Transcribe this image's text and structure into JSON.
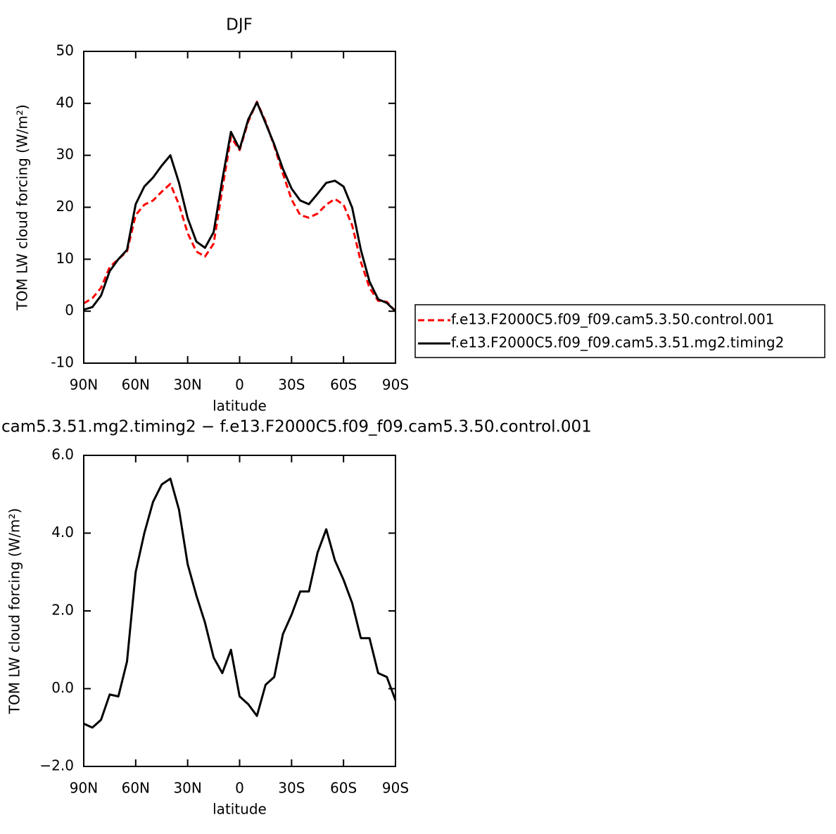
{
  "chart_data": [
    {
      "type": "line",
      "title": "DJF",
      "xlabel": "latitude",
      "ylabel": "TOM LW cloud forcing (W/m²)",
      "x": [
        90,
        85,
        80,
        75,
        70,
        65,
        60,
        55,
        50,
        45,
        40,
        35,
        30,
        25,
        20,
        15,
        10,
        5,
        0,
        -5,
        -10,
        -15,
        -20,
        -25,
        -30,
        -35,
        -40,
        -45,
        -50,
        -55,
        -60,
        -65,
        -70,
        -75,
        -80,
        -85,
        -90
      ],
      "xlim": [
        90,
        -90
      ],
      "xticks": [
        {
          "value": 90,
          "label": "90N"
        },
        {
          "value": 60,
          "label": "60N"
        },
        {
          "value": 30,
          "label": "30N"
        },
        0,
        {
          "value": -30,
          "label": "30S"
        },
        {
          "value": -60,
          "label": "60S"
        },
        {
          "value": -90,
          "label": "90S"
        }
      ],
      "ylim": [
        -10,
        50
      ],
      "yticks": [
        -10,
        0,
        10,
        20,
        30,
        40,
        50
      ],
      "legend": "right",
      "series": [
        {
          "name": "f.e13.F2000C5.f09_f09.cam5.3.50.control.001",
          "color": "#ff0000",
          "style": "dashed",
          "values": [
            1.5,
            2.5,
            4.5,
            8.5,
            10,
            11.5,
            18.5,
            20.5,
            21.3,
            23,
            24.5,
            20.5,
            15,
            11.5,
            10.5,
            13,
            23.5,
            33.5,
            31,
            36.5,
            40.3,
            36.5,
            31.8,
            26.5,
            21.5,
            18.5,
            18,
            18.8,
            20.5,
            21.6,
            20.5,
            16.5,
            9.5,
            4.5,
            2,
            1.8,
            0
          ]
        },
        {
          "name": "f.e13.F2000C5.f09_f09.cam5.3.51.mg2.timing2",
          "color": "#000000",
          "style": "solid",
          "values": [
            0.3,
            0.8,
            3,
            7.7,
            10,
            11.8,
            20.6,
            24,
            25.7,
            28,
            30,
            24.7,
            17.9,
            13.4,
            12.2,
            15.2,
            25.3,
            34.5,
            31.2,
            36.9,
            40.2,
            36.2,
            32.1,
            27.4,
            23.6,
            21.3,
            20.6,
            22.6,
            24.7,
            25.1,
            24,
            19.9,
            11.8,
            5.7,
            2.3,
            1.6,
            0
          ]
        }
      ]
    },
    {
      "type": "line",
      "title": "cam5.3.51.mg2.timing2 − f.e13.F2000C5.f09_f09.cam5.3.50.control.001",
      "xlabel": "latitude",
      "ylabel": "TOM LW cloud forcing (W/m²)",
      "x": [
        90,
        85,
        80,
        75,
        70,
        65,
        60,
        55,
        50,
        45,
        40,
        35,
        30,
        25,
        20,
        15,
        10,
        5,
        0,
        -5,
        -10,
        -15,
        -20,
        -25,
        -30,
        -35,
        -40,
        -45,
        -50,
        -55,
        -60,
        -65,
        -70,
        -75,
        -80,
        -85,
        -90
      ],
      "xlim": [
        90,
        -90
      ],
      "xticks": [
        {
          "value": 90,
          "label": "90N"
        },
        {
          "value": 60,
          "label": "60N"
        },
        {
          "value": 30,
          "label": "30N"
        },
        0,
        {
          "value": -30,
          "label": "30S"
        },
        {
          "value": -60,
          "label": "60S"
        },
        {
          "value": -90,
          "label": "90S"
        }
      ],
      "ylim": [
        -2,
        6
      ],
      "yticks": [
        {
          "value": -2,
          "label": "−2.0"
        },
        {
          "value": 0,
          "label": "0.0"
        },
        {
          "value": 2,
          "label": "2.0"
        },
        {
          "value": 4,
          "label": "4.0"
        },
        {
          "value": 6,
          "label": "6.0"
        }
      ],
      "series": [
        {
          "color": "#000000",
          "style": "solid",
          "values": [
            -0.9,
            -1.0,
            -0.8,
            -0.15,
            -0.2,
            0.7,
            3.0,
            4.0,
            4.8,
            5.25,
            5.4,
            4.6,
            3.2,
            2.4,
            1.7,
            0.8,
            0.4,
            1.0,
            -0.2,
            -0.4,
            -0.7,
            0.1,
            0.3,
            1.4,
            1.9,
            2.5,
            2.5,
            3.5,
            4.1,
            3.3,
            2.8,
            2.2,
            1.3,
            1.3,
            0.4,
            0.3,
            -0.3
          ]
        }
      ]
    }
  ]
}
